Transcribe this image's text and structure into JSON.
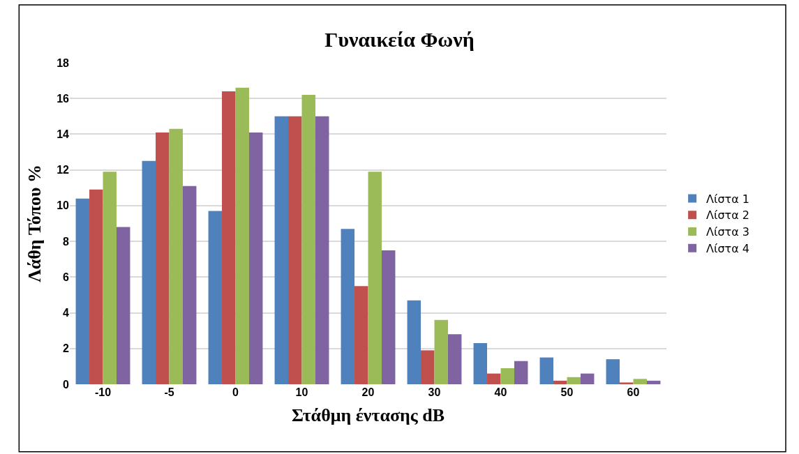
{
  "chart_data": {
    "type": "bar",
    "title": "Γυναικεία Φωνή",
    "xlabel": "Στάθμη έντασης dB",
    "ylabel": "Λάθη Τόπου %",
    "categories": [
      "-10",
      "-5",
      "0",
      "10",
      "20",
      "30",
      "40",
      "50",
      "60"
    ],
    "series": [
      {
        "name": "Λίστα 1",
        "color": "#4f81bd",
        "values": [
          10.4,
          12.5,
          9.7,
          15.0,
          8.7,
          4.7,
          2.3,
          1.5,
          1.4
        ]
      },
      {
        "name": "Λίστα 2",
        "color": "#c0504d",
        "values": [
          10.9,
          14.1,
          16.4,
          15.0,
          5.5,
          1.9,
          0.6,
          0.2,
          0.1
        ]
      },
      {
        "name": "Λίστα 3",
        "color": "#9bbb59",
        "values": [
          11.9,
          14.3,
          16.6,
          16.2,
          11.9,
          3.6,
          0.9,
          0.4,
          0.3
        ]
      },
      {
        "name": "Λίστα 4",
        "color": "#8064a2",
        "values": [
          8.8,
          11.1,
          14.1,
          15.0,
          7.5,
          2.8,
          1.3,
          0.6,
          0.2
        ]
      }
    ],
    "ylim": [
      0,
      18
    ],
    "yticks": [
      0,
      2,
      4,
      6,
      8,
      10,
      12,
      14,
      16,
      18
    ],
    "grid": "y",
    "legend": "right"
  }
}
